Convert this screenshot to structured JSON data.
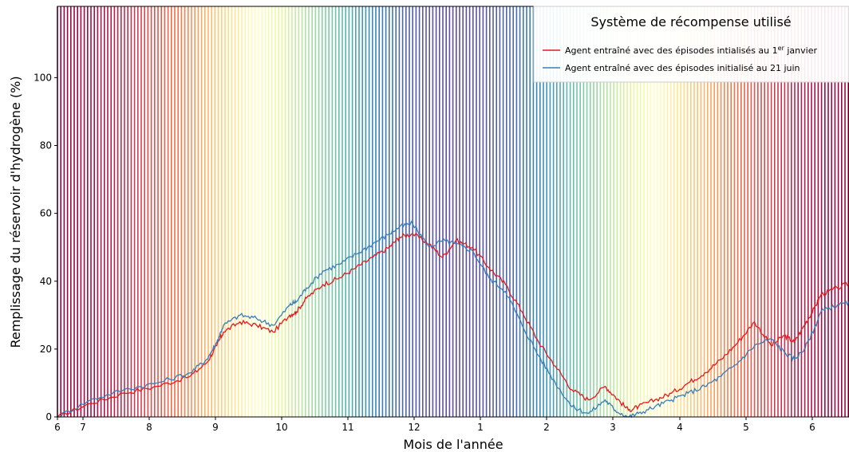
{
  "chart_data": {
    "type": "line",
    "xlabel": "Mois de l'année",
    "ylabel": "Remplissage du réservoir d'hydrogène (%)",
    "x_unit": "months",
    "xlim": [
      6,
      6.55
    ],
    "ylim": [
      0,
      121
    ],
    "x_tick_labels": [
      "6",
      "7",
      "8",
      "9",
      "10",
      "11",
      "12",
      "1",
      "2",
      "3",
      "4",
      "5",
      "6"
    ],
    "y_ticks": [
      0,
      20,
      40,
      60,
      80,
      100
    ],
    "legend": {
      "title": "Système de récompense utilisé",
      "placement": "top-right"
    },
    "background_colormap": "Spectral (seasonal bands)",
    "grid": false,
    "series": [
      {
        "name_prefix": "Agent entraîné avec des épisodes intialisés au 1",
        "name_superscript": "er",
        "name_suffix": " janvier",
        "color": "#e41a1c",
        "x": [
          "6",
          "6.5",
          "7",
          "7.5",
          "8",
          "8.25",
          "8.4",
          "8.5",
          "8.75",
          "9",
          "9.25",
          "9.5",
          "9.6",
          "9.75",
          "10",
          "10.25",
          "10.5",
          "10.75",
          "11",
          "11.15",
          "11.35",
          "11.6",
          "11.8",
          "12",
          "12.25",
          "12.5",
          "12.75",
          "1",
          "1.25",
          "1.5",
          "1.75",
          "2",
          "2.25",
          "2.4",
          "2.6",
          "2.75",
          "3",
          "3.25",
          "3.5",
          "3.75",
          "4",
          "4.25",
          "4.5",
          "4.75",
          "4.95",
          "5.1",
          "5.25",
          "5.4",
          "5.5",
          "5.75",
          "6",
          "6.25",
          "6.5"
        ],
        "values": [
          0,
          4,
          7,
          9,
          12,
          16,
          21,
          25,
          28,
          27,
          25,
          30,
          31,
          35,
          39,
          41,
          44,
          47,
          50,
          53,
          54,
          51,
          47,
          52,
          50,
          44,
          39,
          31,
          22,
          15,
          8,
          5,
          9,
          6,
          2,
          3,
          5,
          7,
          10,
          13,
          17,
          22,
          28,
          21,
          24,
          22,
          27,
          32,
          36,
          38,
          40,
          38,
          38
        ]
      },
      {
        "name": "Agent entraîné avec des épisodes initialisé au 21 juin",
        "color": "#377eb8",
        "x": [
          "6",
          "6.5",
          "7",
          "7.5",
          "8",
          "8.25",
          "8.4",
          "8.5",
          "8.75",
          "9",
          "9.25",
          "9.5",
          "9.6",
          "9.75",
          "10",
          "10.25",
          "10.5",
          "10.75",
          "11",
          "11.15",
          "11.35",
          "11.6",
          "11.8",
          "12",
          "12.25",
          "12.5",
          "12.75",
          "1",
          "1.25",
          "1.5",
          "1.75",
          "2",
          "2.25",
          "2.4",
          "2.6",
          "2.75",
          "3",
          "3.25",
          "3.5",
          "3.75",
          "4",
          "4.25",
          "4.5",
          "4.75",
          "4.95",
          "5.1",
          "5.25",
          "5.4",
          "5.5",
          "5.75",
          "6",
          "6.25",
          "6.5"
        ],
        "values": [
          0,
          5,
          8,
          10,
          13,
          17,
          22,
          27,
          30,
          29,
          27,
          33,
          34,
          38,
          43,
          45,
          48,
          51,
          54,
          56,
          57,
          50,
          52,
          51,
          49,
          41,
          37,
          27,
          18,
          10,
          3,
          1,
          5,
          2,
          0,
          1,
          3,
          5,
          7,
          9,
          12,
          16,
          21,
          23,
          19,
          17,
          20,
          26,
          31,
          33,
          34,
          33,
          33
        ]
      }
    ]
  }
}
